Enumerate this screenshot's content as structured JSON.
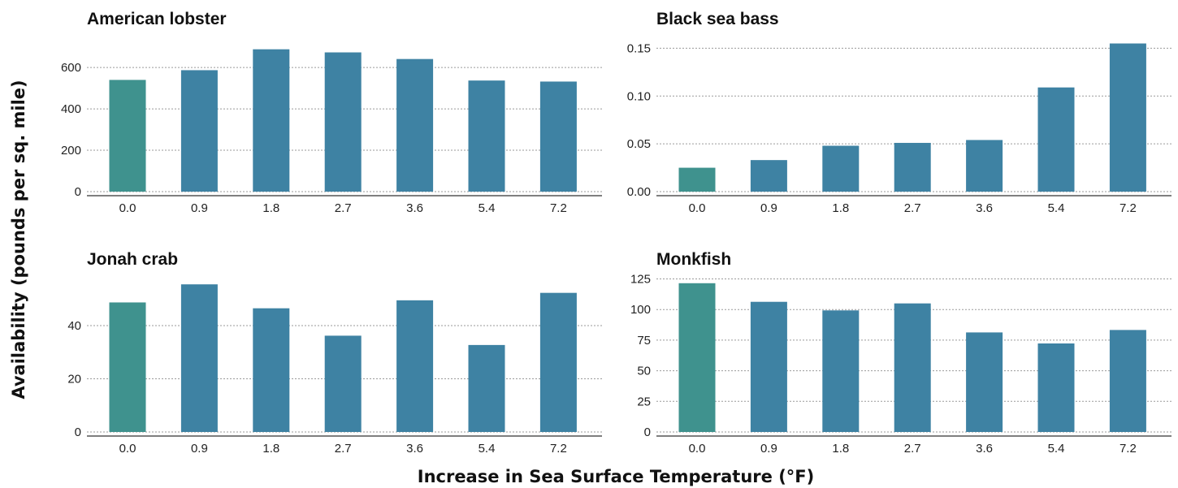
{
  "xlabel": "Increase in Sea Surface Temperature (°F)",
  "ylabel": "Availability (pounds per sq. mile)",
  "colors": {
    "baseline": "#3f928e",
    "bar": "#3e82a3"
  },
  "chart_data": [
    {
      "type": "bar",
      "title": "American lobster",
      "categories": [
        "0.0",
        "0.9",
        "1.8",
        "2.7",
        "3.6",
        "5.4",
        "7.2"
      ],
      "values": [
        540,
        587,
        688,
        673,
        641,
        537,
        532
      ],
      "yticks": [
        0,
        200,
        400,
        600
      ],
      "ylim": [
        0,
        730
      ],
      "grid": true
    },
    {
      "type": "bar",
      "title": "Black sea bass",
      "categories": [
        "0.0",
        "0.9",
        "1.8",
        "2.7",
        "3.6",
        "5.4",
        "7.2"
      ],
      "values": [
        0.025,
        0.033,
        0.048,
        0.051,
        0.054,
        0.109,
        0.155
      ],
      "yticks": [
        "0.00",
        "0.05",
        "0.10",
        "0.15"
      ],
      "ylim": [
        0,
        0.158
      ],
      "grid": true
    },
    {
      "type": "bar",
      "title": "Jonah crab",
      "categories": [
        "0.0",
        "0.9",
        "1.8",
        "2.7",
        "3.6",
        "5.4",
        "7.2"
      ],
      "values": [
        48.7,
        55.5,
        46.5,
        36.2,
        49.5,
        32.7,
        52.3
      ],
      "yticks": [
        0,
        20,
        40
      ],
      "ylim": [
        0,
        58
      ],
      "grid": true
    },
    {
      "type": "bar",
      "title": "Monkfish",
      "categories": [
        "0.0",
        "0.9",
        "1.8",
        "2.7",
        "3.6",
        "5.4",
        "7.2"
      ],
      "values": [
        121.5,
        106.3,
        99.3,
        105,
        81.3,
        72.3,
        83.3
      ],
      "yticks": [
        0,
        25,
        50,
        75,
        100,
        125
      ],
      "ylim": [
        0,
        126
      ],
      "grid": true
    }
  ]
}
